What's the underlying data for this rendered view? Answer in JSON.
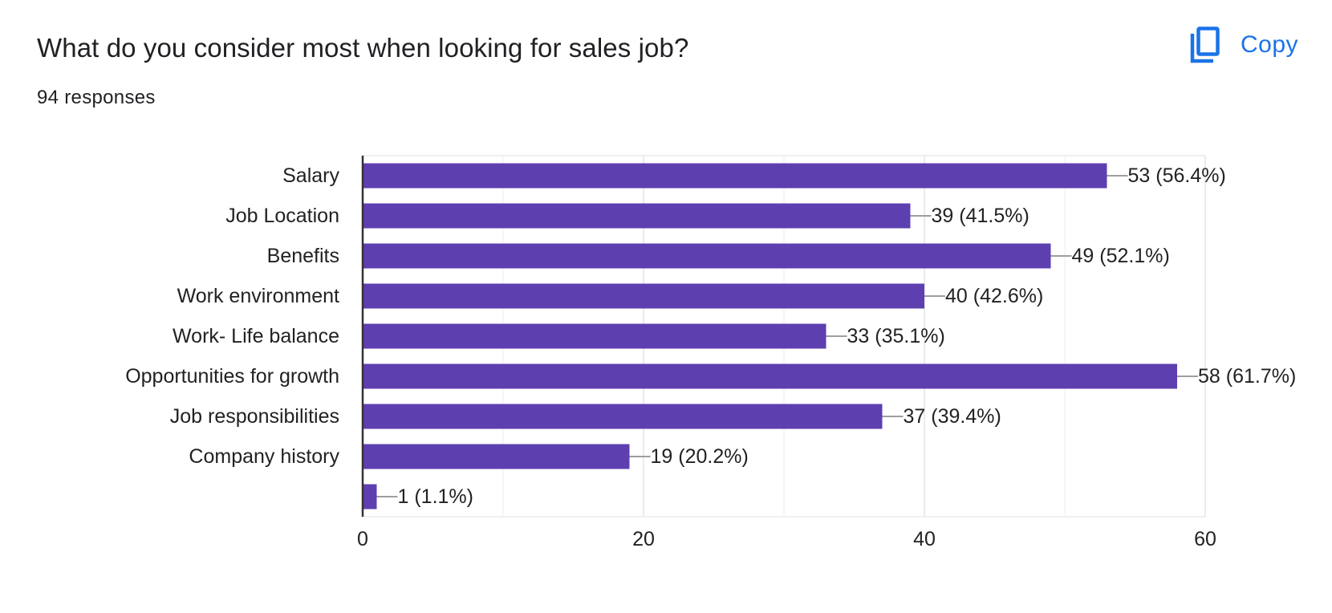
{
  "header": {
    "title": "What do you consider most when looking for sales job?",
    "responses": "94 responses",
    "copy_label": "Copy"
  },
  "colors": {
    "bar": "#5e3fb0",
    "accent": "#1a73e8",
    "grid": "#ebebeb",
    "axis": "#333333",
    "leader": "#9e9e9e"
  },
  "icons": {
    "copy": "copy-icon"
  },
  "chart_data": {
    "type": "bar",
    "orientation": "horizontal",
    "title": "What do you consider most when looking for sales job?",
    "categories": [
      "Salary",
      "Job Location",
      "Benefits",
      "Work environment",
      "Work- Life balance",
      "Opportunities for growth",
      "Job responsibilities",
      "Company history",
      ""
    ],
    "values": [
      53,
      39,
      49,
      40,
      33,
      58,
      37,
      19,
      1
    ],
    "data_labels": [
      "53 (56.4%)",
      "39 (41.5%)",
      "49 (52.1%)",
      "40 (42.6%)",
      "33 (35.1%)",
      "58 (61.7%)",
      "37 (39.4%)",
      "19 (20.2%)",
      "1 (1.1%)"
    ],
    "xlim": [
      0,
      60
    ],
    "xticks": [
      0,
      20,
      40,
      60
    ],
    "xtick_labels": [
      "0",
      "20",
      "40",
      "60"
    ],
    "minor_gridlines": [
      10,
      30,
      50
    ],
    "xlabel": "",
    "ylabel": "",
    "grid": true,
    "legend": "none"
  }
}
